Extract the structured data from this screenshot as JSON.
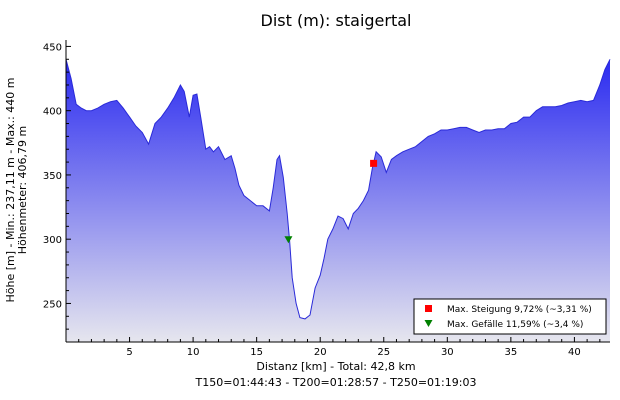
{
  "chart_data": {
    "type": "area",
    "title": "Dist (m): staigertal",
    "xlabel": "Distanz [km] - Total: 42,8 km",
    "subfooter": "T150=01:44:43 - T200=01:28:57 - T250=01:19:03",
    "ylabel_line1": "Höhe [m] - Min.: 237,11 m - Max.: 440 m",
    "ylabel_line2": "Höhenmeter: 406,79 m",
    "xlim": [
      0,
      42.8
    ],
    "ylim": [
      220,
      455
    ],
    "x_ticks": [
      "5",
      "10",
      "15",
      "20",
      "25",
      "30",
      "35",
      "40"
    ],
    "y_ticks": [
      "250",
      "300",
      "350",
      "400",
      "450"
    ],
    "colors": {
      "fill_top": "#2b2bf0",
      "fill_bottom": "#e6e6ee",
      "line": "#2a2ad8",
      "axis": "#000000"
    },
    "series": [
      {
        "x": [
          0.0,
          0.4,
          0.8,
          1.2,
          1.6,
          2.0,
          2.5,
          3.0,
          3.5,
          4.0,
          4.5,
          5.0,
          5.5,
          6.0,
          6.5,
          7.0,
          7.5,
          8.0,
          8.5,
          9.0,
          9.3,
          9.7,
          10.0,
          10.3,
          10.6,
          11.0,
          11.3,
          11.6,
          12.0,
          12.5,
          13.0,
          13.3,
          13.6,
          14.0,
          14.5,
          15.0,
          15.5,
          16.0,
          16.3,
          16.6,
          16.8,
          17.1,
          17.4,
          17.6,
          17.8,
          18.1,
          18.4,
          18.8,
          19.2,
          19.6,
          20.0,
          20.3,
          20.6,
          21.0,
          21.4,
          21.8,
          22.2,
          22.6,
          23.0,
          23.4,
          23.8,
          24.1,
          24.4,
          24.8,
          25.2,
          25.6,
          26.0,
          26.5,
          27.0,
          27.5,
          28.0,
          28.5,
          29.0,
          29.5,
          30.0,
          30.5,
          31.0,
          31.5,
          32.0,
          32.5,
          33.0,
          33.5,
          34.0,
          34.5,
          35.0,
          35.5,
          36.0,
          36.5,
          37.0,
          37.5,
          38.0,
          38.5,
          39.0,
          39.5,
          40.0,
          40.5,
          41.0,
          41.5,
          42.0,
          42.4,
          42.8
        ],
        "values": [
          440,
          425,
          405,
          402,
          400,
          400,
          402,
          405,
          407,
          408,
          402,
          395,
          388,
          383,
          374,
          390,
          395,
          402,
          410,
          420,
          415,
          395,
          412,
          413,
          395,
          370,
          372,
          368,
          372,
          362,
          365,
          355,
          342,
          334,
          330,
          326,
          326,
          322,
          340,
          362,
          365,
          348,
          320,
          298,
          270,
          250,
          239,
          238,
          241,
          262,
          272,
          285,
          300,
          308,
          318,
          316,
          308,
          320,
          324,
          330,
          338,
          355,
          368,
          364,
          352,
          362,
          365,
          368,
          370,
          372,
          376,
          380,
          382,
          385,
          385,
          386,
          387,
          387,
          385,
          383,
          385,
          385,
          386,
          386,
          390,
          391,
          395,
          395,
          400,
          403,
          403,
          403,
          404,
          406,
          407,
          408,
          407,
          408,
          420,
          432,
          440
        ]
      }
    ],
    "markers": [
      {
        "label": "Max. Steigung 9,72% (~3,31 %)",
        "x": 24.2,
        "y": 359,
        "shape": "square",
        "color": "#ff0000"
      },
      {
        "label": "Max. Gefälle 11,59% (~3,4 %)",
        "x": 17.5,
        "y": 300,
        "shape": "triangle-down",
        "color": "#008000"
      }
    ],
    "legend_placement": "bottom-right"
  }
}
